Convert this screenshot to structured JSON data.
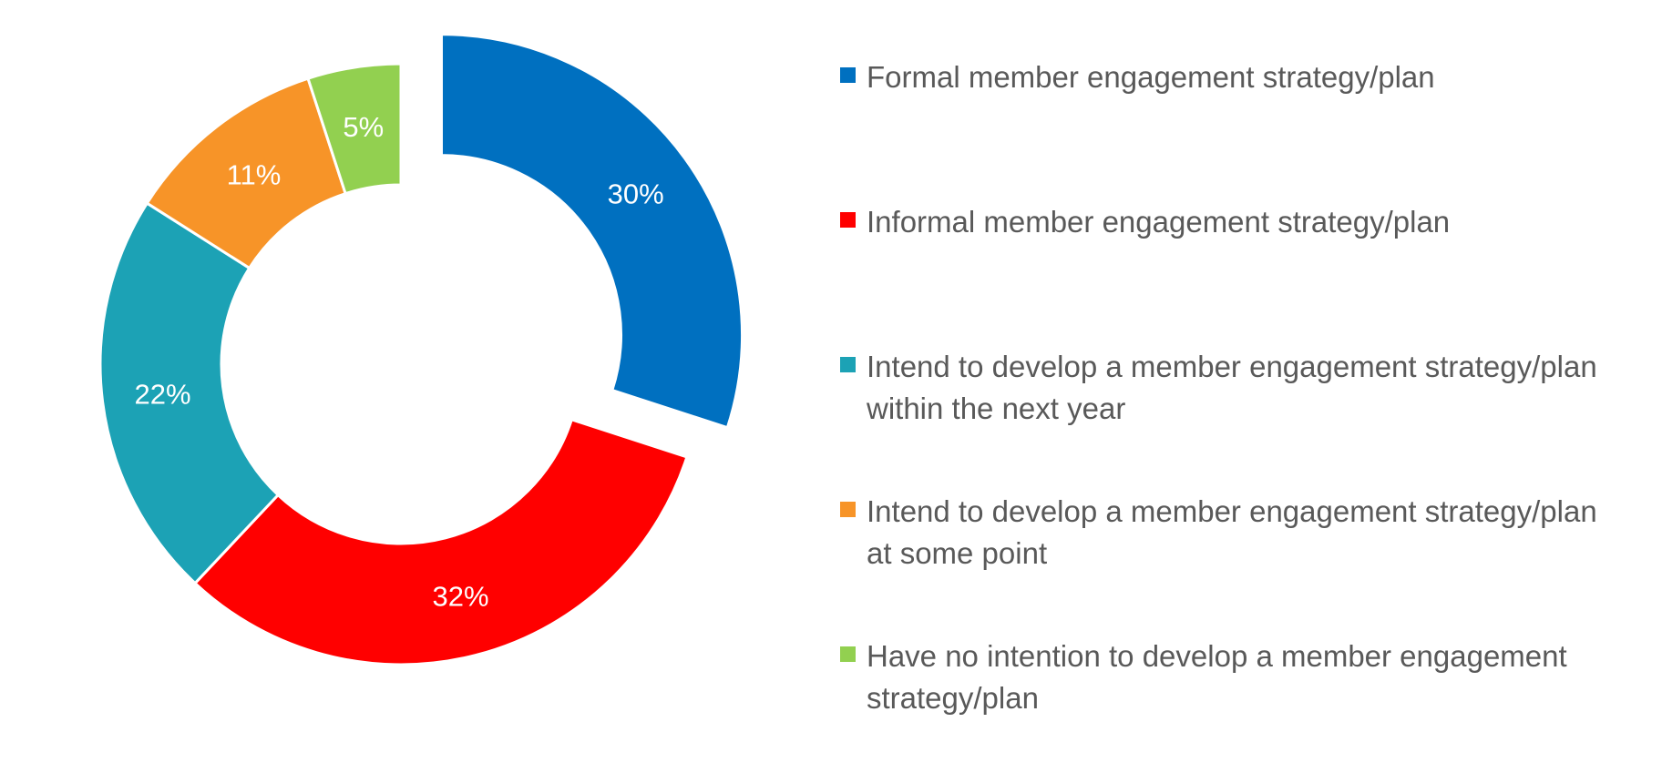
{
  "chart_data": {
    "type": "pie",
    "variant": "donut",
    "title": "",
    "categories": [
      "Formal member engagement strategy/plan",
      "Informal member engagement strategy/plan",
      "Intend to develop a member engagement strategy/plan\nwithin the next year",
      "Intend to develop a member engagement strategy/plan\nat some point",
      "Have no intention to develop a member engagement\nstrategy/plan"
    ],
    "values": [
      30,
      32,
      22,
      11,
      5
    ],
    "data_labels": [
      "30%",
      "32%",
      "22%",
      "11%",
      "5%"
    ],
    "colors": [
      "#0070C0",
      "#FF0000",
      "#1CA2B5",
      "#F79428",
      "#92D050"
    ],
    "exploded_slice": 0,
    "legend_placement": "right"
  }
}
